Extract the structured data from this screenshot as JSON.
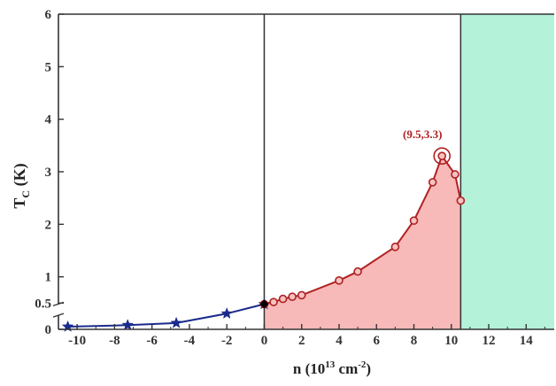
{
  "chart_data": {
    "type": "line",
    "xlabel": {
      "base": "n (10",
      "exp1": "13",
      "mid": " cm",
      "exp2": "-2",
      "end": ")"
    },
    "ylabel": {
      "main": "T",
      "sub": "C",
      "unit": " (K)"
    },
    "xlim": [
      -11,
      15.5
    ],
    "ylim": [
      0,
      6
    ],
    "y_axis_break": [
      0.25,
      0.5
    ],
    "x_ticks": [
      -10,
      -8,
      -6,
      -4,
      -2,
      0,
      2,
      4,
      6,
      8,
      10,
      12,
      14
    ],
    "x_tick_labels": [
      "-10",
      "-8",
      "-6",
      "-4",
      "-2",
      "0",
      "2",
      "4",
      "6",
      "8",
      "10",
      "12",
      "14"
    ],
    "y_ticks": [
      0,
      0.5,
      1,
      2,
      3,
      4,
      5,
      6
    ],
    "y_tick_labels": [
      "0",
      "0.5",
      "1",
      "2",
      "3",
      "4",
      "5",
      "6"
    ],
    "vertical_lines": [
      0,
      10.5
    ],
    "shaded_regions": [
      {
        "type": "under-curve",
        "from_x": 0,
        "to_x": 10.5,
        "color": "#f8b9b9"
      },
      {
        "type": "band",
        "from_x": 10.5,
        "to_x": 15.5,
        "color": "#b4f2da"
      }
    ],
    "series": [
      {
        "marker": "star",
        "color": "#1a2a8c",
        "x": [
          -10.5,
          -7.3,
          -4.7,
          -2.0,
          0
        ],
        "y": [
          0.05,
          0.08,
          0.12,
          0.3,
          0.48
        ]
      },
      {
        "marker": "open-circle",
        "color": "#b02020",
        "x": [
          0,
          0.5,
          1.0,
          1.5,
          2.0,
          4.0,
          5.0,
          7.0,
          8.0,
          9.0,
          9.5,
          10.2,
          10.5
        ],
        "y": [
          0.48,
          0.52,
          0.58,
          0.62,
          0.65,
          0.93,
          1.1,
          1.57,
          2.07,
          2.8,
          3.3,
          2.95,
          2.45
        ]
      }
    ],
    "special_points": [
      {
        "x": 0,
        "y": 0.48,
        "marker": "filled-diamond",
        "color": "#000000"
      }
    ],
    "annotations": [
      {
        "text": "(9.5,3.3)",
        "x": 9.5,
        "y": 3.3,
        "color": "#b02020"
      }
    ],
    "grid": false
  }
}
